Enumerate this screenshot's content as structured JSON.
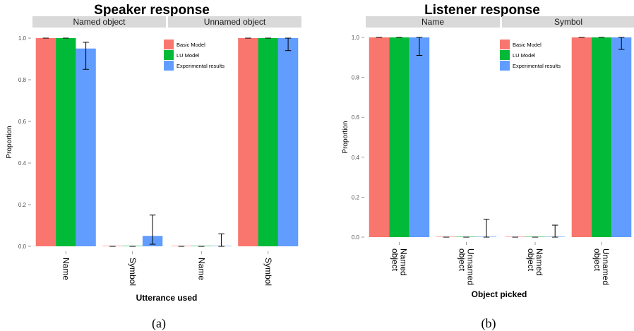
{
  "colors": {
    "Basic Model": "#F8766D",
    "LU Model": "#00BA38",
    "Experimental results": "#619CFF",
    "strip": "#d9d9d9"
  },
  "chart_data": [
    {
      "type": "bar",
      "title": "Speaker response",
      "ylabel": "Proportion",
      "xlabel": "Utterance used",
      "caption": "(a)",
      "ylim": [
        0,
        1
      ],
      "yticks": [
        "0.0",
        "0.2",
        "0.4",
        "0.6",
        "0.8",
        "1.0"
      ],
      "grid": false,
      "legend": {
        "position": "top-right",
        "entries": [
          "Basic Model",
          "LU Model",
          "Experimental results"
        ]
      },
      "facets": [
        {
          "label": "Named object",
          "categories": [
            "Name",
            "Symbol"
          ],
          "series": [
            {
              "name": "Basic Model",
              "values": [
                1.0,
                0.0
              ]
            },
            {
              "name": "LU Model",
              "values": [
                1.0,
                0.0
              ]
            },
            {
              "name": "Experimental results",
              "values": [
                0.95,
                0.05
              ],
              "error_low": [
                0.85,
                0.01
              ],
              "error_high": [
                0.98,
                0.15
              ]
            }
          ]
        },
        {
          "label": "Unnamed object",
          "categories": [
            "Name",
            "Symbol"
          ],
          "series": [
            {
              "name": "Basic Model",
              "values": [
                0.0,
                1.0
              ]
            },
            {
              "name": "LU Model",
              "values": [
                0.0,
                1.0
              ]
            },
            {
              "name": "Experimental results",
              "values": [
                0.0,
                1.0
              ],
              "error_low": [
                0.0,
                0.94
              ],
              "error_high": [
                0.06,
                1.0
              ]
            }
          ]
        }
      ]
    },
    {
      "type": "bar",
      "title": "Listener response",
      "ylabel": "Proportion",
      "xlabel": "Object picked",
      "caption": "(b)",
      "ylim": [
        0,
        1
      ],
      "yticks": [
        "0.0",
        "0.2",
        "0.4",
        "0.6",
        "0.8",
        "1.0"
      ],
      "grid": false,
      "legend": {
        "position": "top-right",
        "entries": [
          "Basic Model",
          "LU Model",
          "Experimental results"
        ]
      },
      "facets": [
        {
          "label": "Name",
          "categories": [
            "Named object",
            "Unnamed object"
          ],
          "series": [
            {
              "name": "Basic Model",
              "values": [
                1.0,
                0.0
              ]
            },
            {
              "name": "LU Model",
              "values": [
                1.0,
                0.0
              ]
            },
            {
              "name": "Experimental results",
              "values": [
                1.0,
                0.0
              ],
              "error_low": [
                0.91,
                0.0
              ],
              "error_high": [
                1.0,
                0.09
              ]
            }
          ]
        },
        {
          "label": "Symbol",
          "categories": [
            "Named object",
            "Unnamed object"
          ],
          "series": [
            {
              "name": "Basic Model",
              "values": [
                0.0,
                1.0
              ]
            },
            {
              "name": "LU Model",
              "values": [
                0.0,
                1.0
              ]
            },
            {
              "name": "Experimental results",
              "values": [
                0.0,
                1.0
              ],
              "error_low": [
                0.0,
                0.94
              ],
              "error_high": [
                0.06,
                1.0
              ]
            }
          ]
        }
      ]
    }
  ]
}
